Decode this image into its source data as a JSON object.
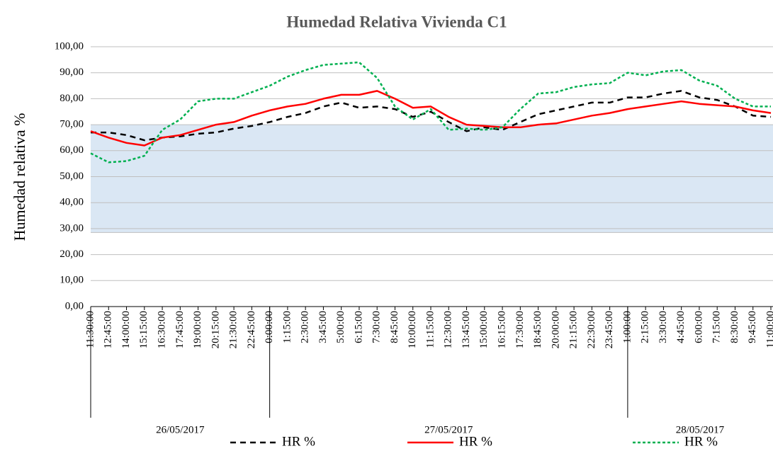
{
  "chart_data": {
    "type": "line",
    "title": "Humedad Relativa Vivienda C1",
    "y_label": "Humedad relativa %",
    "categories": [
      "11:30:00",
      "12:45:00",
      "14:00:00",
      "15:15:00",
      "16:30:00",
      "17:45:00",
      "19:00:00",
      "20:15:00",
      "21:30:00",
      "22:45:00",
      "0:00:00",
      "1:15:00",
      "2:30:00",
      "3:45:00",
      "5:00:00",
      "6:15:00",
      "7:30:00",
      "8:45:00",
      "10:00:00",
      "11:15:00",
      "12:30:00",
      "13:45:00",
      "15:00:00",
      "16:15:00",
      "17:30:00",
      "18:45:00",
      "20:00:00",
      "21:15:00",
      "22:30:00",
      "23:45:00",
      "1:00:00",
      "2:15:00",
      "3:30:00",
      "4:45:00",
      "6:00:00",
      "7:15:00",
      "8:30:00",
      "9:45:00",
      "11:00:00"
    ],
    "date_groups": [
      {
        "label": "26/05/2017",
        "count": 10
      },
      {
        "label": "27/05/2017",
        "count": 20
      },
      {
        "label": "28/05/2017",
        "count": 9
      }
    ],
    "series": [
      {
        "name": "HR %",
        "color": "#000000",
        "dash": "8,6",
        "values": [
          67,
          67,
          66,
          64,
          65,
          65.5,
          66.5,
          67,
          68.5,
          69.5,
          71,
          73,
          74.5,
          77,
          78.5,
          76.5,
          77,
          76,
          73,
          75,
          71,
          67.5,
          69,
          68,
          71,
          74,
          75.5,
          77,
          78.5,
          78.5,
          80.5,
          80.5,
          82,
          83,
          80.5,
          79.5,
          77,
          73.5,
          73
        ]
      },
      {
        "name": "HR %",
        "color": "#ff0000",
        "dash": "none",
        "values": [
          67.5,
          65,
          63,
          62,
          65,
          66,
          68,
          70,
          71,
          73.5,
          75.5,
          77,
          78,
          80,
          81.5,
          81.5,
          83,
          80,
          76.5,
          77,
          73,
          70,
          69.5,
          69,
          69,
          70,
          70.5,
          72,
          73.5,
          74.5,
          76,
          77,
          78,
          79,
          78,
          77.5,
          77,
          75.5,
          74.5
        ]
      },
      {
        "name": "HR %",
        "color": "#00b050",
        "dash": "4,3",
        "values": [
          59,
          55.5,
          56,
          58,
          68,
          72,
          79,
          80,
          80,
          82.5,
          85,
          88.5,
          91,
          93,
          93.5,
          94,
          88,
          77,
          72,
          76,
          68,
          68.5,
          68,
          69,
          76,
          82,
          82.5,
          84.5,
          85.5,
          86,
          90,
          89,
          90.5,
          91,
          87,
          85,
          80,
          77,
          77
        ]
      }
    ],
    "band": {
      "from": 28.5,
      "to": 70,
      "color": "#dae7f4"
    },
    "ylim": [
      0,
      100
    ],
    "yticks": [
      {
        "value": 0,
        "label": "0,00"
      },
      {
        "value": 10,
        "label": "10,00"
      },
      {
        "value": 20,
        "label": "20,00"
      },
      {
        "value": 30,
        "label": "30,00"
      },
      {
        "value": 40,
        "label": "40,00"
      },
      {
        "value": 50,
        "label": "50,00"
      },
      {
        "value": 60,
        "label": "60,00"
      },
      {
        "value": 70,
        "label": "70,00"
      },
      {
        "value": 80,
        "label": "80,00"
      },
      {
        "value": 90,
        "label": "90,00"
      },
      {
        "value": 100,
        "label": "100,00"
      }
    ],
    "grid": true,
    "legend": "bottom"
  }
}
